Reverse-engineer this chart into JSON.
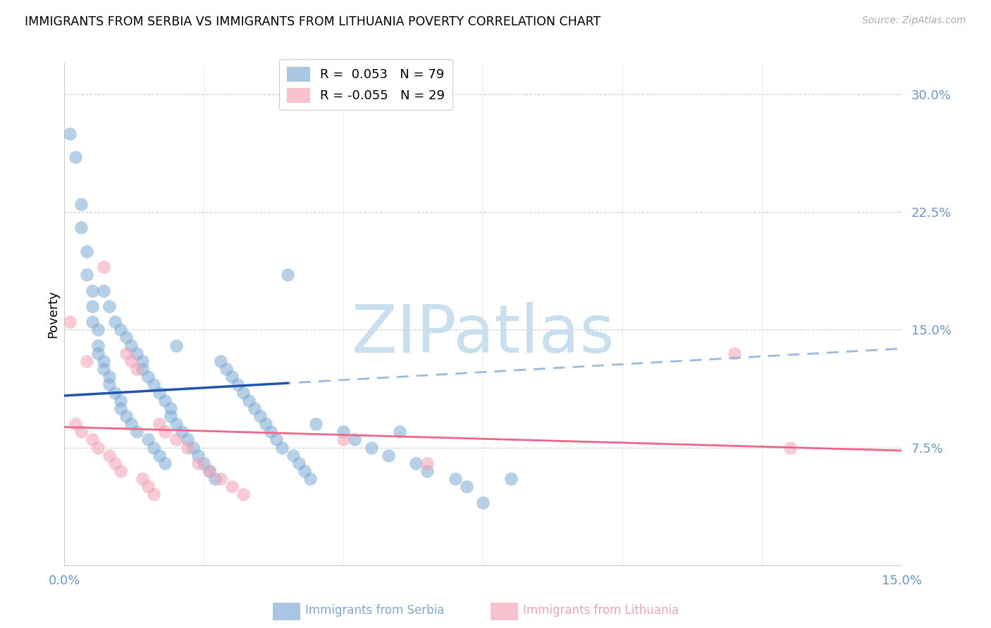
{
  "title": "IMMIGRANTS FROM SERBIA VS IMMIGRANTS FROM LITHUANIA POVERTY CORRELATION CHART",
  "source": "Source: ZipAtlas.com",
  "ylabel": "Poverty",
  "ytick_labels": [
    "30.0%",
    "22.5%",
    "15.0%",
    "7.5%"
  ],
  "ytick_values": [
    0.3,
    0.225,
    0.15,
    0.075
  ],
  "xlim": [
    0.0,
    0.15
  ],
  "ylim": [
    0.0,
    0.32
  ],
  "xtick_positions": [
    0.0,
    0.025,
    0.05,
    0.075,
    0.1,
    0.125,
    0.15
  ],
  "color_serbia": "#7BAAD4",
  "color_lithuania": "#F4A0B5",
  "color_trendline_serbia_solid": "#2255AA",
  "color_trendline_serbia_dash": "#99BBDD",
  "color_trendline_lithuania": "#EE6688",
  "color_axis_labels": "#6699CC",
  "grid_color": "#CCCCCC",
  "background": "#FFFFFF",
  "serbia_intercept": 0.108,
  "serbia_slope": 0.1,
  "lithuania_intercept": 0.09,
  "lithuania_slope": -0.1,
  "serbia_x": [
    0.001,
    0.002,
    0.003,
    0.003,
    0.004,
    0.004,
    0.005,
    0.005,
    0.005,
    0.006,
    0.006,
    0.006,
    0.007,
    0.007,
    0.007,
    0.008,
    0.008,
    0.008,
    0.009,
    0.009,
    0.01,
    0.01,
    0.01,
    0.011,
    0.011,
    0.012,
    0.012,
    0.013,
    0.013,
    0.014,
    0.014,
    0.015,
    0.015,
    0.016,
    0.016,
    0.017,
    0.017,
    0.018,
    0.018,
    0.019,
    0.019,
    0.02,
    0.02,
    0.021,
    0.022,
    0.023,
    0.024,
    0.025,
    0.026,
    0.027,
    0.028,
    0.029,
    0.03,
    0.031,
    0.032,
    0.033,
    0.034,
    0.035,
    0.036,
    0.037,
    0.038,
    0.039,
    0.04,
    0.041,
    0.042,
    0.043,
    0.044,
    0.045,
    0.05,
    0.052,
    0.055,
    0.058,
    0.06,
    0.063,
    0.065,
    0.07,
    0.072,
    0.075,
    0.08
  ],
  "serbia_y": [
    0.275,
    0.26,
    0.23,
    0.215,
    0.2,
    0.185,
    0.175,
    0.165,
    0.155,
    0.15,
    0.14,
    0.135,
    0.13,
    0.125,
    0.175,
    0.12,
    0.115,
    0.165,
    0.11,
    0.155,
    0.105,
    0.15,
    0.1,
    0.145,
    0.095,
    0.14,
    0.09,
    0.135,
    0.085,
    0.13,
    0.125,
    0.08,
    0.12,
    0.075,
    0.115,
    0.07,
    0.11,
    0.065,
    0.105,
    0.1,
    0.095,
    0.14,
    0.09,
    0.085,
    0.08,
    0.075,
    0.07,
    0.065,
    0.06,
    0.055,
    0.13,
    0.125,
    0.12,
    0.115,
    0.11,
    0.105,
    0.1,
    0.095,
    0.09,
    0.085,
    0.08,
    0.075,
    0.185,
    0.07,
    0.065,
    0.06,
    0.055,
    0.09,
    0.085,
    0.08,
    0.075,
    0.07,
    0.085,
    0.065,
    0.06,
    0.055,
    0.05,
    0.04,
    0.055
  ],
  "lithuania_x": [
    0.001,
    0.002,
    0.003,
    0.004,
    0.005,
    0.006,
    0.007,
    0.008,
    0.009,
    0.01,
    0.011,
    0.012,
    0.013,
    0.014,
    0.015,
    0.016,
    0.017,
    0.018,
    0.02,
    0.022,
    0.024,
    0.026,
    0.028,
    0.03,
    0.032,
    0.05,
    0.065,
    0.12,
    0.13
  ],
  "lithuania_y": [
    0.155,
    0.09,
    0.085,
    0.13,
    0.08,
    0.075,
    0.19,
    0.07,
    0.065,
    0.06,
    0.135,
    0.13,
    0.125,
    0.055,
    0.05,
    0.045,
    0.09,
    0.085,
    0.08,
    0.075,
    0.065,
    0.06,
    0.055,
    0.05,
    0.045,
    0.08,
    0.065,
    0.135,
    0.075
  ]
}
